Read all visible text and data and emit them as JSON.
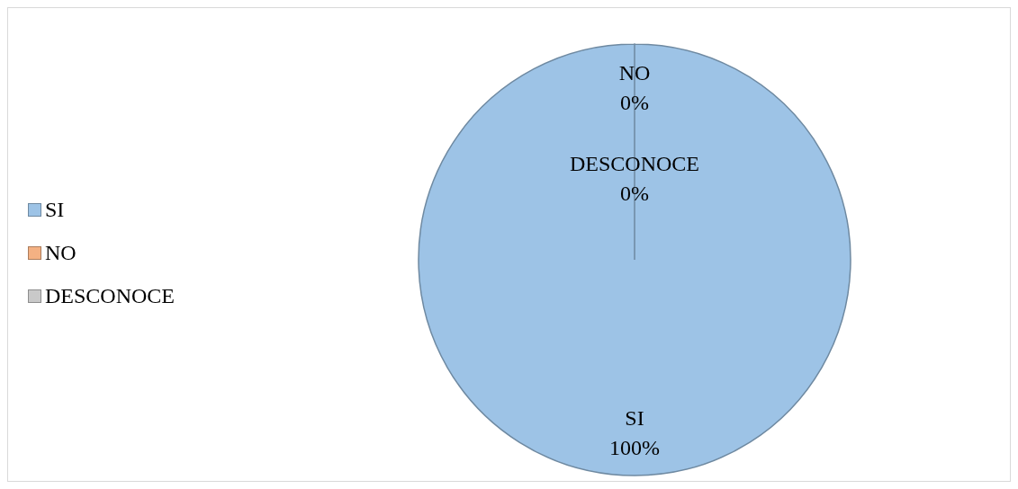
{
  "chart_data": {
    "type": "pie",
    "categories": [
      "SI",
      "NO",
      "DESCONOCE"
    ],
    "values": [
      100,
      0,
      0
    ],
    "colors": [
      "#9dc3e6",
      "#f4b183",
      "#c9c9c9"
    ],
    "value_labels": [
      "100%",
      "0%",
      "0%"
    ],
    "legend": "left"
  }
}
